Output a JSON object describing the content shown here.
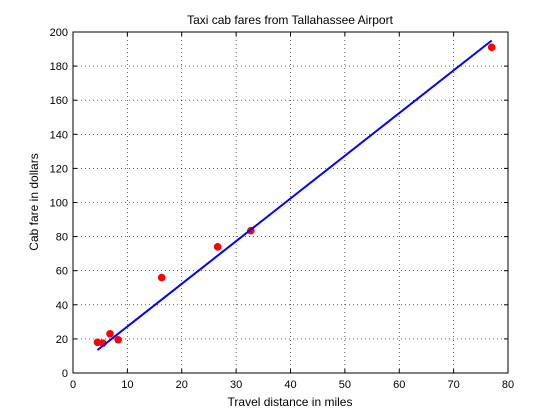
{
  "chart_data": {
    "type": "scatter",
    "title": "Taxi cab fares from Tallahassee Airport",
    "xlabel": "Travel distance in miles",
    "ylabel": "Cab fare in dollars",
    "xlim": [
      0,
      80
    ],
    "ylim": [
      0,
      200
    ],
    "xticks": [
      0,
      10,
      20,
      30,
      40,
      50,
      60,
      70,
      80
    ],
    "yticks": [
      0,
      20,
      40,
      60,
      80,
      100,
      120,
      140,
      160,
      180,
      200
    ],
    "grid": true,
    "series": [
      {
        "kind": "scatter",
        "color": "#ff0000",
        "points": [
          {
            "x": 4.5,
            "y": 18
          },
          {
            "x": 5.5,
            "y": 17.5
          },
          {
            "x": 6.8,
            "y": 23
          },
          {
            "x": 8.3,
            "y": 19.5
          },
          {
            "x": 16.3,
            "y": 56
          },
          {
            "x": 26.6,
            "y": 74
          },
          {
            "x": 32.7,
            "y": 83.5
          },
          {
            "x": 77.0,
            "y": 191
          }
        ]
      },
      {
        "kind": "line",
        "color": "#0000ff",
        "points": [
          {
            "x": 4.5,
            "y": 13.5
          },
          {
            "x": 77.0,
            "y": 195
          }
        ]
      }
    ]
  }
}
